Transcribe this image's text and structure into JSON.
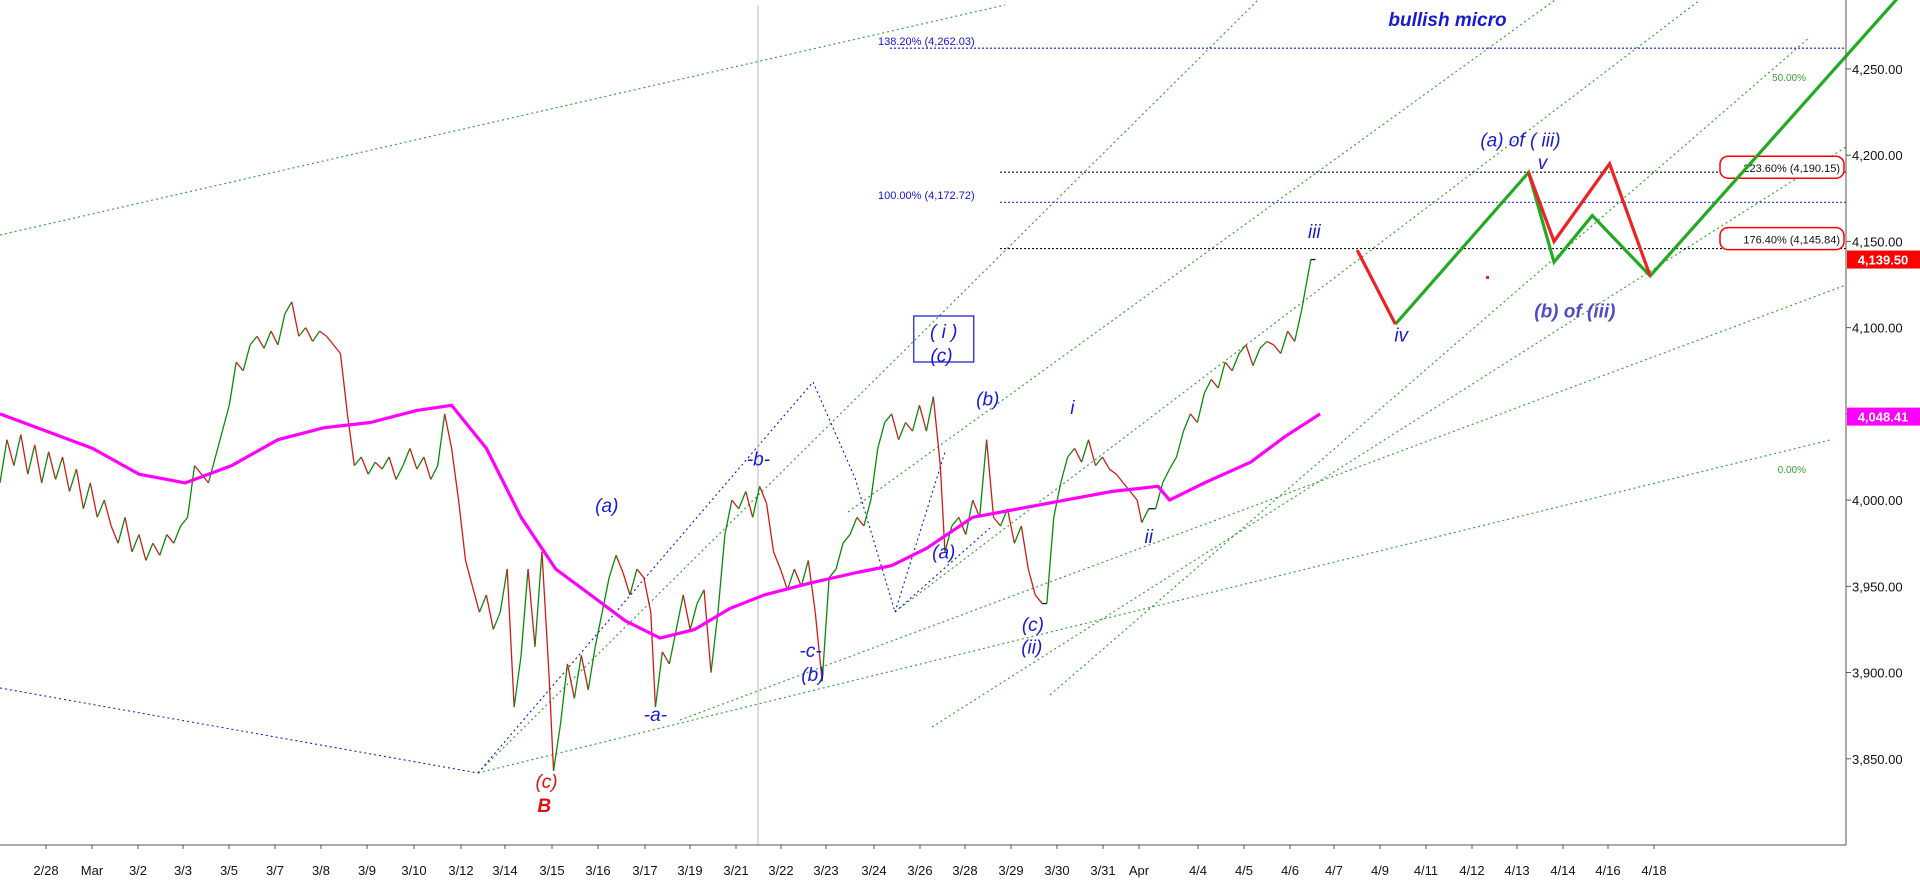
{
  "chart_data": {
    "type": "line",
    "title": "",
    "xlabel": "",
    "ylabel": "",
    "ylim": [
      3800,
      4290
    ],
    "y_ticks": [
      3850,
      3900,
      3950,
      4000,
      4050,
      4100,
      4150,
      4200,
      4250
    ],
    "y_tick_labels": [
      "3,850.00",
      "3,900.00",
      "3,950.00",
      "4,000.00",
      "4,050.00",
      "4,100.00",
      "4,150.00",
      "4,200.00",
      "4,250.00"
    ],
    "x_tick_labels": [
      "2/28",
      "Mar",
      "3/2",
      "3/3",
      "3/5",
      "3/7",
      "3/8",
      "3/9",
      "3/10",
      "3/12",
      "3/14",
      "3/15",
      "3/16",
      "3/17",
      "3/19",
      "3/21",
      "3/22",
      "3/23",
      "3/24",
      "3/26",
      "3/28",
      "3/29",
      "3/30",
      "3/31",
      "Apr",
      "4/4",
      "4/5",
      "4/6",
      "4/7",
      "4/9",
      "4/11",
      "4/12",
      "4/13",
      "4/14",
      "4/16",
      "4/18"
    ],
    "grid": false,
    "price_path": [
      [
        0,
        4010
      ],
      [
        6,
        4035
      ],
      [
        12,
        4020
      ],
      [
        18,
        4038
      ],
      [
        24,
        4015
      ],
      [
        30,
        4032
      ],
      [
        36,
        4010
      ],
      [
        42,
        4028
      ],
      [
        48,
        4012
      ],
      [
        54,
        4025
      ],
      [
        60,
        4005
      ],
      [
        66,
        4018
      ],
      [
        72,
        3995
      ],
      [
        78,
        4010
      ],
      [
        84,
        3990
      ],
      [
        90,
        4000
      ],
      [
        96,
        3985
      ],
      [
        102,
        3975
      ],
      [
        108,
        3990
      ],
      [
        114,
        3970
      ],
      [
        120,
        3980
      ],
      [
        126,
        3965
      ],
      [
        132,
        3975
      ],
      [
        138,
        3968
      ],
      [
        144,
        3980
      ],
      [
        150,
        3975
      ],
      [
        156,
        3985
      ],
      [
        162,
        3990
      ],
      [
        168,
        4020
      ],
      [
        174,
        4015
      ],
      [
        180,
        4010
      ],
      [
        186,
        4025
      ],
      [
        192,
        4040
      ],
      [
        198,
        4055
      ],
      [
        204,
        4080
      ],
      [
        210,
        4075
      ],
      [
        216,
        4090
      ],
      [
        222,
        4095
      ],
      [
        228,
        4088
      ],
      [
        234,
        4098
      ],
      [
        240,
        4090
      ],
      [
        246,
        4108
      ],
      [
        252,
        4115
      ],
      [
        258,
        4095
      ],
      [
        264,
        4100
      ],
      [
        270,
        4092
      ],
      [
        276,
        4098
      ],
      [
        282,
        4095
      ],
      [
        288,
        4090
      ],
      [
        294,
        4085
      ],
      [
        300,
        4050
      ],
      [
        306,
        4020
      ],
      [
        312,
        4025
      ],
      [
        318,
        4015
      ],
      [
        324,
        4022
      ],
      [
        330,
        4018
      ],
      [
        336,
        4025
      ],
      [
        342,
        4012
      ],
      [
        348,
        4020
      ],
      [
        354,
        4030
      ],
      [
        360,
        4018
      ],
      [
        366,
        4025
      ],
      [
        372,
        4012
      ],
      [
        378,
        4020
      ],
      [
        384,
        4050
      ],
      [
        390,
        4030
      ],
      [
        396,
        4000
      ],
      [
        402,
        3965
      ],
      [
        408,
        3950
      ],
      [
        414,
        3935
      ],
      [
        420,
        3945
      ],
      [
        426,
        3925
      ],
      [
        432,
        3935
      ],
      [
        438,
        3960
      ],
      [
        444,
        3880
      ],
      [
        450,
        3910
      ],
      [
        456,
        3960
      ],
      [
        462,
        3915
      ],
      [
        468,
        3970
      ],
      [
        474,
        3900
      ],
      [
        478,
        3843
      ],
      [
        484,
        3870
      ],
      [
        490,
        3905
      ],
      [
        496,
        3885
      ],
      [
        502,
        3910
      ],
      [
        508,
        3890
      ],
      [
        514,
        3915
      ],
      [
        520,
        3935
      ],
      [
        526,
        3955
      ],
      [
        532,
        3968
      ],
      [
        538,
        3958
      ],
      [
        544,
        3945
      ],
      [
        550,
        3960
      ],
      [
        556,
        3955
      ],
      [
        562,
        3935
      ],
      [
        566,
        3880
      ],
      [
        572,
        3912
      ],
      [
        578,
        3905
      ],
      [
        584,
        3925
      ],
      [
        590,
        3945
      ],
      [
        596,
        3925
      ],
      [
        602,
        3940
      ],
      [
        608,
        3948
      ],
      [
        614,
        3900
      ],
      [
        620,
        3935
      ],
      [
        626,
        3980
      ],
      [
        632,
        4000
      ],
      [
        638,
        3995
      ],
      [
        644,
        4005
      ],
      [
        650,
        3990
      ],
      [
        656,
        4008
      ],
      [
        662,
        3998
      ],
      [
        668,
        3970
      ],
      [
        674,
        3960
      ],
      [
        680,
        3948
      ],
      [
        686,
        3960
      ],
      [
        692,
        3950
      ],
      [
        698,
        3965
      ],
      [
        704,
        3935
      ],
      [
        710,
        3895
      ],
      [
        716,
        3955
      ],
      [
        722,
        3960
      ],
      [
        728,
        3975
      ],
      [
        734,
        3980
      ],
      [
        740,
        3990
      ],
      [
        746,
        3985
      ],
      [
        752,
        4000
      ],
      [
        758,
        4030
      ],
      [
        764,
        4045
      ],
      [
        770,
        4050
      ],
      [
        776,
        4035
      ],
      [
        782,
        4045
      ],
      [
        788,
        4040
      ],
      [
        794,
        4055
      ],
      [
        800,
        4040
      ],
      [
        806,
        4060
      ],
      [
        812,
        4020
      ],
      [
        816,
        3970
      ],
      [
        822,
        3985
      ],
      [
        828,
        3990
      ],
      [
        834,
        3980
      ],
      [
        840,
        4000
      ],
      [
        846,
        3990
      ],
      [
        852,
        4035
      ],
      [
        858,
        3990
      ],
      [
        864,
        3985
      ],
      [
        870,
        3995
      ],
      [
        876,
        3975
      ],
      [
        882,
        3985
      ],
      [
        888,
        3960
      ],
      [
        894,
        3945
      ],
      [
        900,
        3940
      ],
      [
        904,
        3940
      ],
      [
        910,
        3990
      ],
      [
        916,
        4010
      ],
      [
        922,
        4025
      ],
      [
        928,
        4030
      ],
      [
        934,
        4022
      ],
      [
        940,
        4035
      ],
      [
        946,
        4020
      ],
      [
        952,
        4025
      ],
      [
        958,
        4018
      ],
      [
        964,
        4015
      ],
      [
        970,
        4010
      ],
      [
        976,
        4005
      ],
      [
        982,
        4000
      ],
      [
        986,
        3987
      ],
      [
        992,
        3995
      ],
      [
        998,
        3995
      ],
      [
        1004,
        4010
      ],
      [
        1010,
        4018
      ],
      [
        1016,
        4025
      ],
      [
        1022,
        4040
      ],
      [
        1028,
        4050
      ],
      [
        1034,
        4045
      ],
      [
        1040,
        4062
      ],
      [
        1046,
        4070
      ],
      [
        1052,
        4065
      ],
      [
        1058,
        4080
      ],
      [
        1064,
        4075
      ],
      [
        1070,
        4085
      ],
      [
        1076,
        4090
      ],
      [
        1082,
        4078
      ],
      [
        1088,
        4088
      ],
      [
        1094,
        4092
      ],
      [
        1100,
        4090
      ],
      [
        1106,
        4085
      ],
      [
        1112,
        4098
      ],
      [
        1118,
        4092
      ],
      [
        1124,
        4110
      ],
      [
        1128,
        4125
      ],
      [
        1132,
        4139.5
      ],
      [
        1136,
        4139.5
      ]
    ],
    "series": [
      {
        "name": "",
        "color": "#ff00ff",
        "values": [
          [
            0,
            4050
          ],
          [
            40,
            4040
          ],
          [
            80,
            4030
          ],
          [
            120,
            4015
          ],
          [
            160,
            4010
          ],
          [
            200,
            4020
          ],
          [
            240,
            4035
          ],
          [
            280,
            4042
          ],
          [
            320,
            4045
          ],
          [
            360,
            4052
          ],
          [
            390,
            4055
          ],
          [
            420,
            4030
          ],
          [
            450,
            3990
          ],
          [
            480,
            3960
          ],
          [
            510,
            3945
          ],
          [
            540,
            3930
          ],
          [
            570,
            3920
          ],
          [
            600,
            3925
          ],
          [
            630,
            3937
          ],
          [
            660,
            3945
          ],
          [
            700,
            3952
          ],
          [
            740,
            3958
          ],
          [
            770,
            3962
          ],
          [
            800,
            3972
          ],
          [
            840,
            3990
          ],
          [
            880,
            3995
          ],
          [
            920,
            4000
          ],
          [
            960,
            4005
          ],
          [
            1000,
            4008
          ],
          [
            1010,
            4000
          ],
          [
            1040,
            4010
          ],
          [
            1080,
            4022
          ],
          [
            1110,
            4037
          ],
          [
            1140,
            4050
          ]
        ]
      }
    ],
    "current_price": 4139.5,
    "current_price_label": "4,139.50",
    "ma_value": 4048.41,
    "ma_value_label": "4,048.41",
    "colors": {
      "price_up": "#0a8a0a",
      "price_down": "#d11a1a",
      "price_neutral": "#111111",
      "ma_line": "#ff00ff",
      "fib_blue": "#1414d2",
      "fib_black": "#111111",
      "channel": "#3aa33a",
      "projection_up": "#22aa22",
      "projection_down": "#ee2222",
      "wave_label": "#1a1ad0",
      "wave_label_red": "#dd1111",
      "price_badge": "#ff0000",
      "ma_badge": "#ff00ff"
    },
    "fib_levels": [
      {
        "label": "138.20% (4,262.03)",
        "value": 4262.03,
        "color": "#1414d2"
      },
      {
        "label": "100.00% (4,172.72)",
        "value": 4172.72,
        "color": "#1414d2"
      },
      {
        "label": "223.60% (4,190.15)",
        "value": 4190.15,
        "color": "#111111"
      },
      {
        "label": "176.40% (4,145.84)",
        "value": 4145.84,
        "color": "#111111"
      }
    ],
    "channel_percent_labels": [
      "50.00%",
      "0.00%"
    ],
    "projection_up_path": [
      [
        1205,
        4102
      ],
      [
        1320,
        4190
      ],
      [
        1342,
        4138
      ],
      [
        1375,
        4165
      ],
      [
        1425,
        4130
      ],
      [
        1640,
        4292
      ]
    ],
    "projection_down_segments": [
      [
        [
          1172,
          4145
        ],
        [
          1205,
          4102
        ]
      ],
      [
        [
          1320,
          4190
        ],
        [
          1342,
          4150
        ],
        [
          1390,
          4195
        ],
        [
          1425,
          4130
        ]
      ]
    ],
    "annotations": [
      {
        "text": "bullish micro",
        "color": "#1a1ad0",
        "x": 1250,
        "y": 4275
      },
      {
        "text": "(a) of ( iii)",
        "color": "#1a1ad0",
        "x": 1313,
        "y": 4205
      },
      {
        "text": "v",
        "color": "#1a1ad0",
        "x": 1332,
        "y": 4192
      },
      {
        "text": "iii",
        "color": "#1a1ad0",
        "x": 1135,
        "y": 4152
      },
      {
        "text": "iv",
        "color": "#1a1ad0",
        "x": 1210,
        "y": 4092
      },
      {
        "text": "(b) of (iii)",
        "color": "#4d4dc7",
        "x": 1360,
        "y": 4106
      },
      {
        "text": "( i )",
        "color": "#1a1ad0",
        "x": 815,
        "y": 4094
      },
      {
        "text": "(c)",
        "color": "#1a1ad0",
        "x": 813,
        "y": 4080
      },
      {
        "text": "(b)",
        "color": "#1a1ad0",
        "x": 853,
        "y": 4055
      },
      {
        "text": "i",
        "color": "#1a1ad0",
        "x": 926,
        "y": 4050
      },
      {
        "text": "ii",
        "color": "#1a1ad0",
        "x": 992,
        "y": 3975
      },
      {
        "text": "(a)",
        "color": "#1a1ad0",
        "x": 815,
        "y": 3966
      },
      {
        "text": "(c)",
        "color": "#1a1ad0",
        "x": 892,
        "y": 3924
      },
      {
        "text": "(ii)",
        "color": "#1a1ad0",
        "x": 891,
        "y": 3911
      },
      {
        "text": "-b-",
        "color": "#1a1ad0",
        "x": 655,
        "y": 4020
      },
      {
        "text": "(a)",
        "color": "#1a1ad0",
        "x": 524,
        "y": 3993
      },
      {
        "text": "-c-",
        "color": "#1a1ad0",
        "x": 700,
        "y": 3909
      },
      {
        "text": "(b)",
        "color": "#1a1ad0",
        "x": 702,
        "y": 3895
      },
      {
        "text": "-a-",
        "color": "#1a1ad0",
        "x": 566,
        "y": 3872
      },
      {
        "text": "(c)",
        "color": "#dd1111",
        "x": 472,
        "y": 3833
      },
      {
        "text": "B",
        "color": "#dd1111",
        "x": 470,
        "y": 3819
      }
    ]
  }
}
